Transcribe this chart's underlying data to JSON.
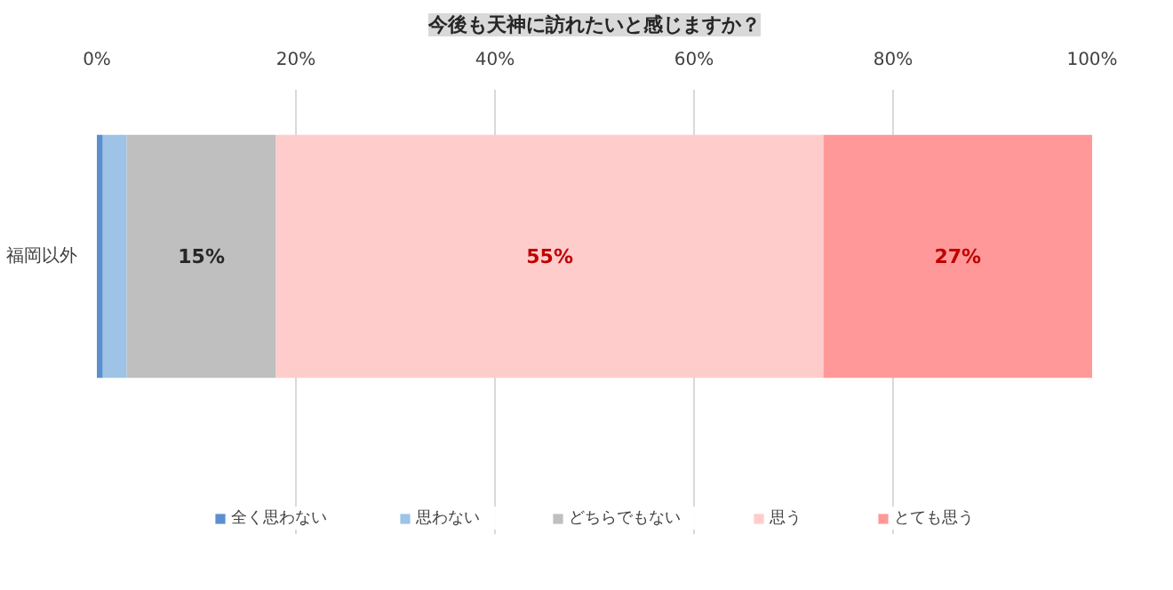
{
  "chart_data": {
    "type": "bar",
    "orientation": "horizontal",
    "stacked": true,
    "title": "今後も天神に訪れたいと感じますか？",
    "categories": [
      "福岡以外"
    ],
    "series": [
      {
        "name": "全く思わない",
        "color": "#5b8fcf",
        "values": [
          0.6
        ],
        "value_labels": [
          null
        ]
      },
      {
        "name": "思わない",
        "color": "#9dc3e6",
        "values": [
          2.4
        ],
        "value_labels": [
          null
        ]
      },
      {
        "name": "どちらでもない",
        "color": "#bfbfbf",
        "values": [
          15
        ],
        "value_labels": [
          "15%"
        ]
      },
      {
        "name": "思う",
        "color": "#ffcccc",
        "values": [
          55
        ],
        "value_labels": [
          "55%"
        ]
      },
      {
        "name": "とても思う",
        "color": "#ff9999",
        "values": [
          27
        ],
        "value_labels": [
          "27%"
        ]
      }
    ],
    "xlim": [
      0,
      100
    ],
    "xticks": [
      {
        "value": 0,
        "label": "0%"
      },
      {
        "value": 20,
        "label": "20%"
      },
      {
        "value": 40,
        "label": "40%"
      },
      {
        "value": 60,
        "label": "60%"
      },
      {
        "value": 80,
        "label": "80%"
      },
      {
        "value": 100,
        "label": "100%"
      }
    ],
    "grid": "x",
    "legend": "bottom"
  }
}
